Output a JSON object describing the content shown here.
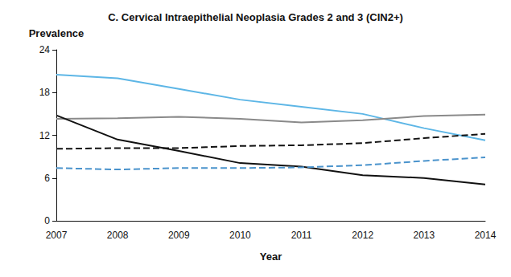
{
  "chart_data": {
    "type": "line",
    "title": "C. Cervical Intraepithelial Neoplasia Grades 2 and 3 (CIN2+)",
    "x_label": "Year",
    "y_label": "Prevalence",
    "categories": [
      "2007",
      "2008",
      "2009",
      "2010",
      "2011",
      "2012",
      "2013",
      "2014"
    ],
    "series": [
      {
        "color": "#5db6e6",
        "line_style": "solid",
        "values": [
          20.5,
          20.0,
          18.5,
          17.0,
          16.0,
          15.0,
          13.0,
          11.3
        ]
      },
      {
        "color": "#8a8a8a",
        "line_style": "solid",
        "values": [
          14.3,
          14.4,
          14.6,
          14.3,
          13.8,
          14.1,
          14.7,
          14.9
        ]
      },
      {
        "color": "#111111",
        "line_style": "solid",
        "values": [
          14.8,
          11.4,
          9.8,
          8.1,
          7.6,
          6.4,
          6.0,
          5.1
        ]
      },
      {
        "color": "#111111",
        "line_style": "dashed",
        "values": [
          10.1,
          10.2,
          10.2,
          10.5,
          10.6,
          10.9,
          11.6,
          12.2
        ]
      },
      {
        "color": "#4a93cc",
        "line_style": "dashed",
        "values": [
          7.4,
          7.2,
          7.4,
          7.4,
          7.5,
          7.8,
          8.4,
          8.9
        ]
      }
    ],
    "ylim": [
      0,
      24
    ],
    "yticks": [
      0,
      6,
      12,
      18,
      24
    ],
    "grid": false
  }
}
